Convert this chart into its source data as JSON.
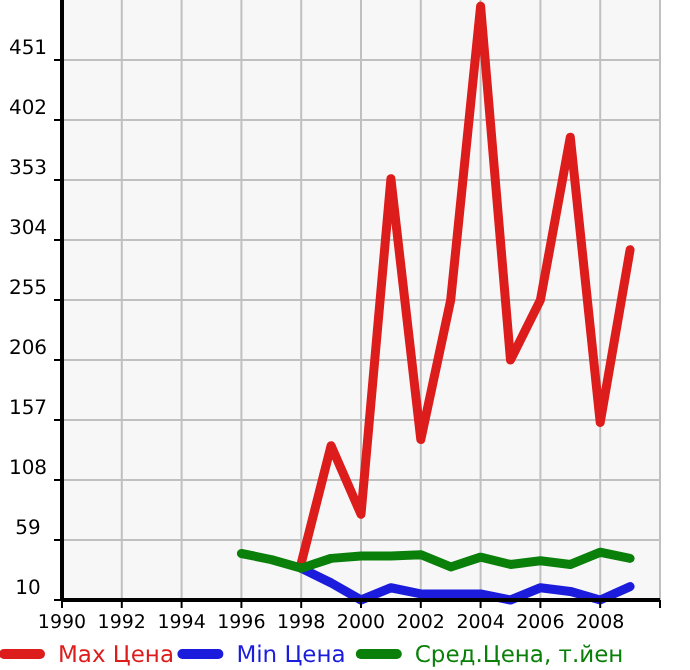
{
  "chart_data": {
    "type": "line",
    "x": [
      1996,
      1997,
      1998,
      1999,
      2000,
      2001,
      2002,
      2003,
      2004,
      2005,
      2006,
      2007,
      2008,
      2009
    ],
    "series": [
      {
        "name": "Max Цена",
        "color": "#dd1c1c",
        "x": [
          1998,
          1999,
          2000,
          2001,
          2002,
          2003,
          2004,
          2005,
          2006,
          2007,
          2008,
          2009
        ],
        "values": [
          40,
          136,
          80,
          354,
          141,
          255,
          495,
          206,
          255,
          388,
          155,
          296
        ]
      },
      {
        "name": "Min Цена",
        "color": "#1c1cdd",
        "x": [
          1998,
          1999,
          2000,
          2001,
          2002,
          2003,
          2004,
          2005,
          2006,
          2007,
          2008,
          2009
        ],
        "values": [
          36,
          24,
          10,
          20,
          15,
          15,
          15,
          10,
          20,
          17,
          10,
          21
        ]
      },
      {
        "name": "Сред.Цена, т.йен",
        "color": "#0a800a",
        "values": [
          48,
          43,
          36,
          44,
          46,
          46,
          47,
          37,
          45,
          39,
          42,
          39,
          49,
          44
        ]
      }
    ],
    "xlim": [
      1990,
      2010
    ],
    "xticks": [
      1990,
      1992,
      1994,
      1996,
      1998,
      2000,
      2002,
      2004,
      2006,
      2008
    ],
    "ylim": [
      10,
      500
    ],
    "yticks": [
      10,
      59,
      108,
      157,
      206,
      255,
      304,
      353,
      402,
      451
    ],
    "grid": true,
    "legend": "bottom",
    "marker": "none",
    "line_style": "solid"
  }
}
